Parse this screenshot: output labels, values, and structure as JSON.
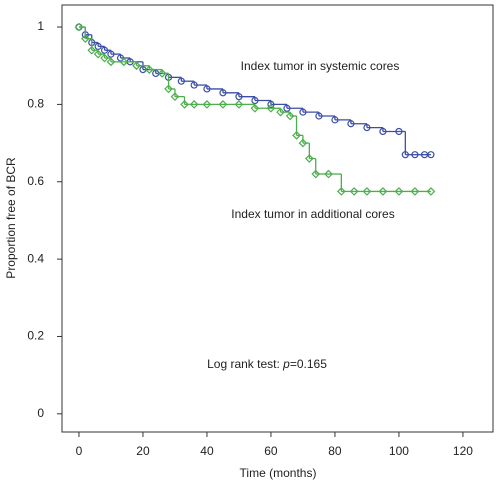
{
  "chart_data": {
    "type": "line",
    "step": true,
    "xlabel": "Time (months)",
    "ylabel": "Proportion free of BCR",
    "xlim": [
      -5.3,
      129.4
    ],
    "ylim": [
      -0.047,
      1.057
    ],
    "xticks": [
      0,
      20,
      40,
      60,
      80,
      100,
      120
    ],
    "yticks": [
      0,
      0.2,
      0.4,
      0.6,
      0.8,
      1
    ],
    "annotations": [
      "Index tumor in systemic cores",
      "Index tumor in additional cores"
    ],
    "test_note": {
      "prefix": "Log rank test: ",
      "symbol": "p",
      "value": "=0.165"
    },
    "series": [
      {
        "color": "#3b4ea6",
        "marker": "circle",
        "x": [
          0,
          2,
          4,
          6,
          8,
          10,
          13,
          16,
          20,
          24,
          28,
          32,
          36,
          40,
          45,
          50,
          55,
          60,
          65,
          70,
          75,
          80,
          85,
          90,
          95,
          100,
          102,
          105,
          108,
          110
        ],
        "values": [
          1,
          0.98,
          0.96,
          0.95,
          0.94,
          0.93,
          0.92,
          0.91,
          0.89,
          0.88,
          0.87,
          0.86,
          0.85,
          0.84,
          0.83,
          0.82,
          0.81,
          0.8,
          0.79,
          0.78,
          0.77,
          0.76,
          0.75,
          0.74,
          0.73,
          0.73,
          0.67,
          0.67,
          0.67,
          0.67
        ]
      },
      {
        "color": "#4cae4c",
        "marker": "diamond",
        "x": [
          0,
          2,
          4,
          6,
          8,
          10,
          14,
          18,
          22,
          26,
          28,
          30,
          33,
          36,
          40,
          45,
          50,
          55,
          60,
          63,
          66,
          68,
          70,
          72,
          74,
          78,
          82,
          86,
          90,
          95,
          100,
          105,
          110
        ],
        "values": [
          1,
          0.97,
          0.94,
          0.93,
          0.92,
          0.91,
          0.91,
          0.9,
          0.89,
          0.88,
          0.84,
          0.82,
          0.8,
          0.8,
          0.8,
          0.8,
          0.8,
          0.79,
          0.79,
          0.78,
          0.77,
          0.72,
          0.7,
          0.66,
          0.62,
          0.62,
          0.575,
          0.575,
          0.575,
          0.575,
          0.575,
          0.575,
          0.575
        ]
      }
    ]
  }
}
